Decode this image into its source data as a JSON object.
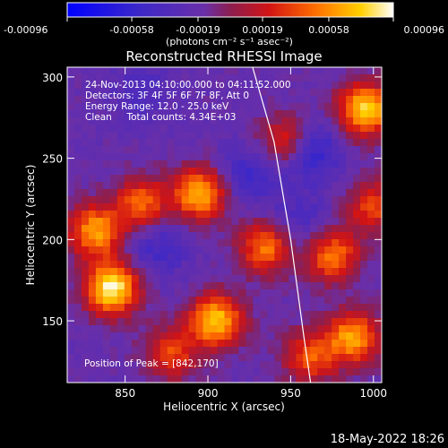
{
  "chart_data": {
    "type": "heatmap",
    "title": "Reconstructed RHESSI Image",
    "xlabel": "Heliocentric X (arcsec)",
    "ylabel": "Heliocentric Y (arcsec)",
    "xlim": [
      815,
      1005
    ],
    "ylim": [
      112,
      306
    ],
    "x_ticks": [
      850,
      900,
      950,
      1000
    ],
    "y_ticks": [
      150,
      200,
      250,
      300
    ],
    "colorbar": {
      "colormap": "blue-purple-red-orange-yellow-white",
      "range": [
        -0.00096,
        0.00096
      ],
      "tick_values": [
        -0.00096,
        -0.00058,
        -0.00019,
        0.00019,
        0.00058,
        0.00096
      ],
      "tick_labels": [
        "-0.00096",
        "-0.00058",
        "-0.00019",
        "0.00019",
        "0.00058",
        "0.00096"
      ],
      "unit_label": "(photons cm⁻² s⁻¹ asec⁻²)"
    },
    "annotations": [
      "24-Nov-2013 04:10:00.000 to 04:11:52.000",
      "Detectors: 3F 4F 5F 6F 7F 8F, Att 0",
      "Energy Range: 12.0 - 25.0 keV",
      "Clean     Total counts: 4.34E+03"
    ],
    "peak_label": "Position of Peak = [842,170]",
    "peak_position": [
      842,
      170
    ],
    "hot_regions": [
      {
        "x": 842,
        "y": 170,
        "intensity": 1.0
      },
      {
        "x": 832,
        "y": 205,
        "intensity": 0.75
      },
      {
        "x": 895,
        "y": 228,
        "intensity": 0.8
      },
      {
        "x": 860,
        "y": 222,
        "intensity": 0.6
      },
      {
        "x": 905,
        "y": 150,
        "intensity": 0.85
      },
      {
        "x": 878,
        "y": 130,
        "intensity": 0.5
      },
      {
        "x": 935,
        "y": 195,
        "intensity": 0.65
      },
      {
        "x": 948,
        "y": 260,
        "intensity": 0.6
      },
      {
        "x": 975,
        "y": 190,
        "intensity": 0.65
      },
      {
        "x": 995,
        "y": 280,
        "intensity": 0.9
      },
      {
        "x": 988,
        "y": 140,
        "intensity": 0.75
      },
      {
        "x": 962,
        "y": 128,
        "intensity": 0.55
      },
      {
        "x": 1000,
        "y": 220,
        "intensity": 0.5
      }
    ],
    "cold_regions": [
      {
        "x": 960,
        "y": 255,
        "intensity": 1.0
      },
      {
        "x": 925,
        "y": 240,
        "intensity": 0.6
      },
      {
        "x": 870,
        "y": 195,
        "intensity": 0.55
      },
      {
        "x": 860,
        "y": 290,
        "intensity": 0.4
      },
      {
        "x": 955,
        "y": 210,
        "intensity": 0.45
      }
    ],
    "limb": {
      "points": [
        [
          927,
          306
        ],
        [
          940,
          260
        ],
        [
          950,
          200
        ],
        [
          958,
          140
        ],
        [
          962,
          112
        ]
      ]
    }
  },
  "footer_date": "18-May-2022 18:26"
}
